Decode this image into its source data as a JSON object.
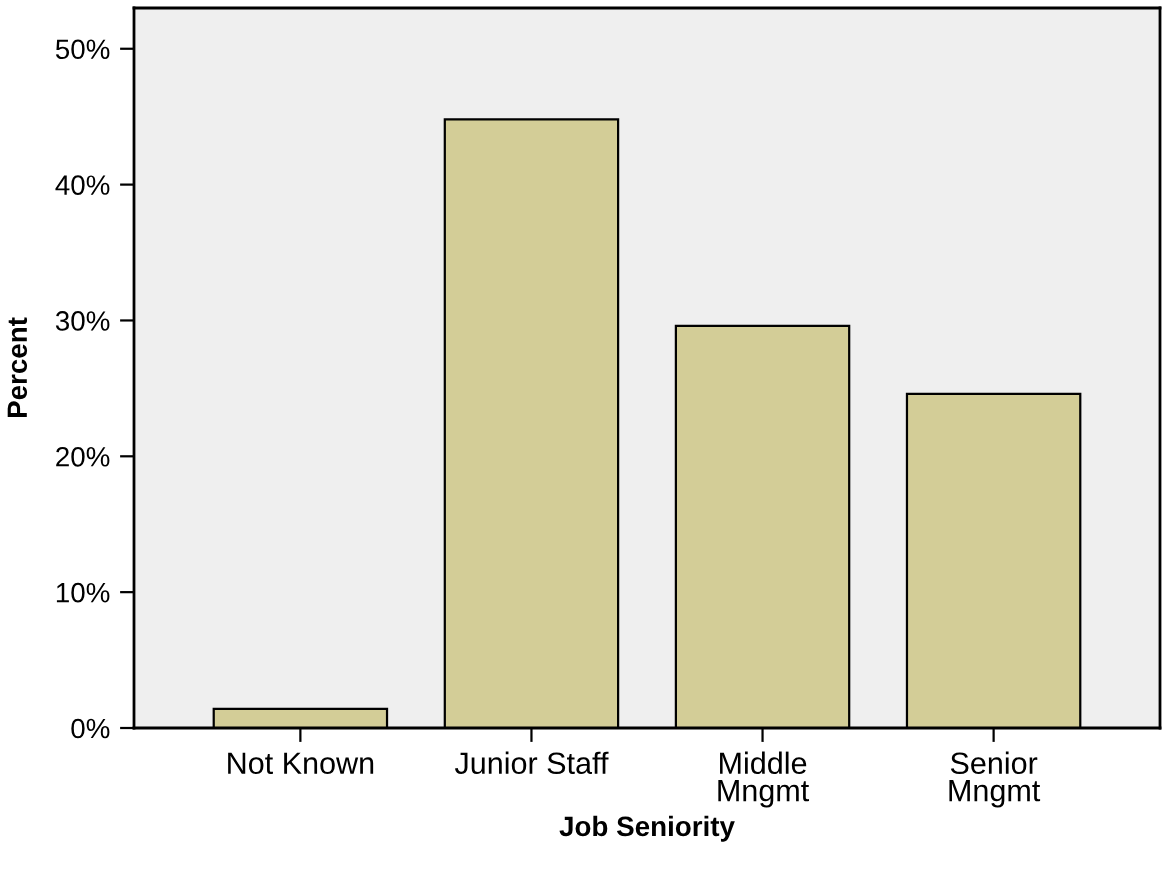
{
  "chart_data": {
    "type": "bar",
    "xlabel": "Job Seniority",
    "ylabel": "Percent",
    "categories": [
      "Not Known",
      "Junior Staff",
      "Middle\nMngmt",
      "Senior\nMngmt"
    ],
    "values": [
      1.4,
      44.8,
      29.6,
      24.6
    ],
    "color": "#d3cd97",
    "ylim": [
      0,
      53
    ],
    "yticks": [
      {
        "value": 0,
        "label": "0%"
      },
      {
        "value": 10,
        "label": "10%"
      },
      {
        "value": 20,
        "label": "20%"
      },
      {
        "value": 30,
        "label": "30%"
      },
      {
        "value": 40,
        "label": "40%"
      },
      {
        "value": 50,
        "label": "50%"
      }
    ],
    "grid": false,
    "legend": false
  }
}
